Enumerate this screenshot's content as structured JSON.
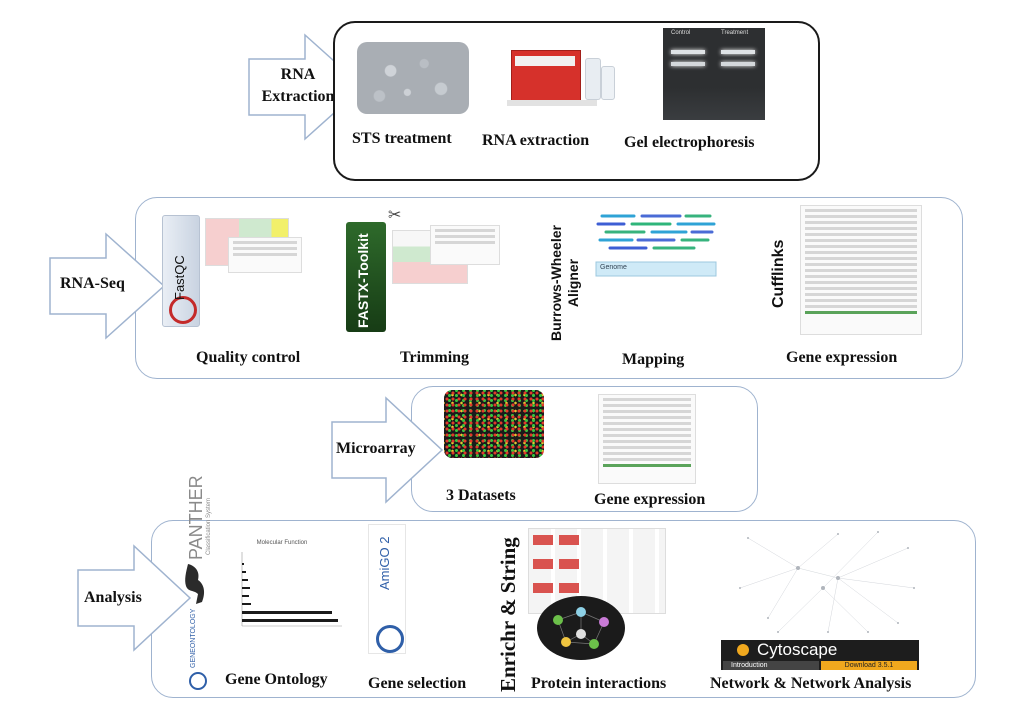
{
  "sections": {
    "rna_extraction": {
      "title": "RNA Extraction",
      "steps": [
        "STS treatment",
        "RNA extraction",
        "Gel electrophoresis"
      ],
      "gel_lanes": [
        "Control",
        "Treatment"
      ]
    },
    "rna_seq": {
      "title": "RNA-Seq",
      "steps": [
        "Quality control",
        "Trimming",
        "Mapping",
        "Gene expression"
      ],
      "tools": [
        "FastQC",
        "FASTX-Toolkit",
        "Burrows-Wheeler Aligner",
        "Cufflinks"
      ],
      "mapping_ref": "Genome"
    },
    "microarray": {
      "title": "Microarray",
      "steps": [
        "3 Datasets",
        "Gene expression"
      ]
    },
    "analysis": {
      "title": "Analysis",
      "steps": [
        "Gene Ontology",
        "Gene selection",
        "Protein interactions",
        "Network & Network Analysis"
      ],
      "tools": [
        "PANTHER",
        "AmiGO 2",
        "Enrichr & String",
        "Cytoscape"
      ],
      "panther_sub": "Classification System",
      "geneontology": "GENEONTOLOGY",
      "go_chart_title": "Molecular Function",
      "cytoscape_bar": "Introduction",
      "cytoscape_version": "Download 3.5.1"
    }
  },
  "colors": {
    "panel_border": "#9fb3cf",
    "dark_border": "#1a1a1a",
    "arrow_fill": "#ffffff",
    "arrow_stroke": "#9fb3cf"
  }
}
